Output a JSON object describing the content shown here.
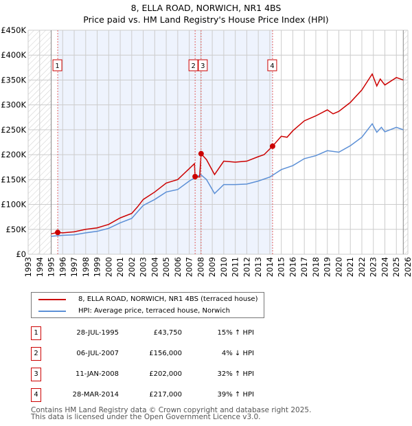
{
  "title": "8, ELLA ROAD, NORWICH, NR1 4BS",
  "subtitle": "Price paid vs. HM Land Registry's House Price Index (HPI)",
  "chart_data": {
    "type": "line",
    "ylim": [
      0,
      450000
    ],
    "xlim": [
      1993,
      2026
    ],
    "yticks": [
      {
        "v": 0,
        "label": "£0"
      },
      {
        "v": 50000,
        "label": "£50K"
      },
      {
        "v": 100000,
        "label": "£100K"
      },
      {
        "v": 150000,
        "label": "£150K"
      },
      {
        "v": 200000,
        "label": "£200K"
      },
      {
        "v": 250000,
        "label": "£250K"
      },
      {
        "v": 300000,
        "label": "£300K"
      },
      {
        "v": 350000,
        "label": "£350K"
      },
      {
        "v": 400000,
        "label": "£400K"
      },
      {
        "v": 450000,
        "label": "£450K"
      }
    ],
    "xticks": [
      "1993",
      "1994",
      "1995",
      "1996",
      "1997",
      "1998",
      "1999",
      "2000",
      "2001",
      "2002",
      "2003",
      "2004",
      "2005",
      "2006",
      "2007",
      "2008",
      "2009",
      "2010",
      "2011",
      "2012",
      "2013",
      "2014",
      "2015",
      "2016",
      "2017",
      "2018",
      "2019",
      "2020",
      "2021",
      "2022",
      "2023",
      "2024",
      "2025",
      "2026"
    ],
    "shaded_range": [
      1995.57,
      2014.24
    ],
    "hatched_before": 1995,
    "hatched_after": 2025.6,
    "series": [
      {
        "name": "8, ELLA ROAD, NORWICH, NR1 4BS (terraced house)",
        "color": "#cc0000",
        "x": [
          1995,
          1995.57,
          1996,
          1997,
          1998,
          1999,
          2000,
          2001,
          2002,
          2002.5,
          2003,
          2004,
          2005,
          2006,
          2007,
          2007.45,
          2007.51,
          2007.9,
          2008.03,
          2008.5,
          2009.2,
          2010,
          2011,
          2012,
          2013,
          2013.5,
          2014.24,
          2015,
          2015.5,
          2016,
          2017,
          2018,
          2019,
          2019.5,
          2020,
          2021,
          2022,
          2022.9,
          2023.3,
          2023.6,
          2024,
          2025,
          2025.6
        ],
        "y": [
          41000,
          43750,
          43000,
          45000,
          50000,
          53000,
          60000,
          73000,
          82000,
          95000,
          110000,
          125000,
          143000,
          150000,
          172000,
          182000,
          156000,
          155000,
          202000,
          190000,
          160000,
          187000,
          185000,
          187000,
          196000,
          200000,
          217000,
          237000,
          235000,
          248000,
          268000,
          278000,
          290000,
          282000,
          287000,
          305000,
          330000,
          362000,
          338000,
          352000,
          340000,
          355000,
          350000
        ]
      },
      {
        "name": "HPI: Average price, terraced house, Norwich",
        "color": "#5b8fd6",
        "x": [
          1995,
          1996,
          1997,
          1998,
          1999,
          2000,
          2001,
          2002,
          2002.5,
          2003,
          2004,
          2005,
          2006,
          2007,
          2007.6,
          2008,
          2008.5,
          2009.2,
          2010,
          2011,
          2012,
          2013,
          2014,
          2015,
          2016,
          2017,
          2018,
          2019,
          2020,
          2021,
          2022,
          2022.9,
          2023.3,
          2023.7,
          2024,
          2025,
          2025.6
        ],
        "y": [
          36000,
          38000,
          39000,
          43000,
          46000,
          52000,
          63000,
          72000,
          85000,
          98000,
          110000,
          125000,
          130000,
          147000,
          155000,
          160000,
          150000,
          122000,
          140000,
          140000,
          141000,
          147000,
          155000,
          170000,
          178000,
          192000,
          198000,
          208000,
          205000,
          218000,
          235000,
          262000,
          245000,
          255000,
          246000,
          255000,
          250000
        ]
      }
    ],
    "sales": [
      {
        "n": "1",
        "x": 1995.57,
        "y": 43750
      },
      {
        "n": "2",
        "x": 2007.51,
        "y": 156000
      },
      {
        "n": "3",
        "x": 2008.03,
        "y": 202000
      },
      {
        "n": "4",
        "x": 2014.24,
        "y": 217000
      }
    ]
  },
  "legend": {
    "red": "8, ELLA ROAD, NORWICH, NR1 4BS (terraced house)",
    "blue": "HPI: Average price, terraced house, Norwich"
  },
  "transactions": [
    {
      "n": "1",
      "date": "28-JUL-1995",
      "price": "£43,750",
      "hpi": "15% ↑ HPI"
    },
    {
      "n": "2",
      "date": "06-JUL-2007",
      "price": "£156,000",
      "hpi": "4% ↓ HPI"
    },
    {
      "n": "3",
      "date": "11-JAN-2008",
      "price": "£202,000",
      "hpi": "32% ↑ HPI"
    },
    {
      "n": "4",
      "date": "28-MAR-2014",
      "price": "£217,000",
      "hpi": "39% ↑ HPI"
    }
  ],
  "footer": [
    "Contains HM Land Registry data © Crown copyright and database right 2025.",
    "This data is licensed under the Open Government Licence v3.0."
  ]
}
